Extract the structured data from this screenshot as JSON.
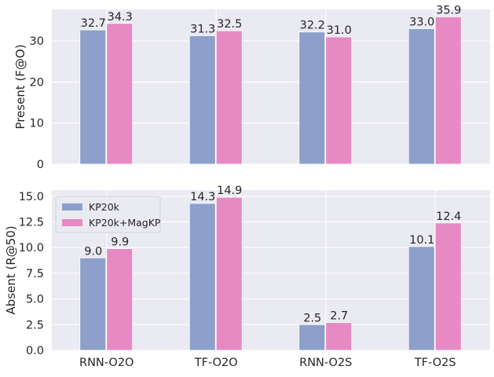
{
  "chart_data": [
    {
      "type": "bar",
      "categories": [
        "RNN-O2O",
        "TF-O2O",
        "RNN-O2S",
        "TF-O2S"
      ],
      "series": [
        {
          "name": "KP20k",
          "values": [
            32.7,
            31.3,
            32.2,
            33.0
          ],
          "labels": [
            "32.7",
            "31.3",
            "32.2",
            "33.0"
          ]
        },
        {
          "name": "KP20k+MagKP",
          "values": [
            34.3,
            32.5,
            31.0,
            35.9
          ],
          "labels": [
            "34.3",
            "32.5",
            "31.0",
            "35.9"
          ]
        }
      ],
      "ylabel": "Present (F@O)",
      "ylim": [
        0,
        37.7
      ],
      "yticks": [
        0,
        10,
        20,
        30
      ],
      "ytick_labels": [
        "0",
        "10",
        "20",
        "30"
      ],
      "show_xtick_labels": false,
      "show_legend": false
    },
    {
      "type": "bar",
      "categories": [
        "RNN-O2O",
        "TF-O2O",
        "RNN-O2S",
        "TF-O2S"
      ],
      "series": [
        {
          "name": "KP20k",
          "values": [
            9.0,
            14.3,
            2.5,
            10.1
          ],
          "labels": [
            "9.0",
            "14.3",
            "2.5",
            "10.1"
          ]
        },
        {
          "name": "KP20k+MagKP",
          "values": [
            9.9,
            14.9,
            2.7,
            12.4
          ],
          "labels": [
            "9.9",
            "14.9",
            "2.7",
            "12.4"
          ]
        }
      ],
      "ylabel": "Absent (R@50)",
      "ylim": [
        0,
        15.6
      ],
      "yticks": [
        0,
        2.5,
        5,
        7.5,
        10,
        12.5,
        15
      ],
      "ytick_labels": [
        "0.0",
        "2.5",
        "5.0",
        "7.5",
        "10.0",
        "12.5",
        "15.0"
      ],
      "show_xtick_labels": true,
      "show_legend": true,
      "legend_position": "top-left"
    }
  ],
  "colors": {
    "KP20k": "#8da0cb",
    "KP20k+MagKP": "#e78ac3",
    "plot_background": "#eaeaf2",
    "grid": "#ffffff"
  }
}
